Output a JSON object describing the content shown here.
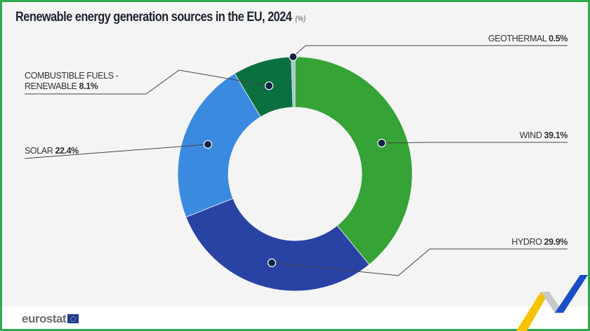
{
  "chart_data": {
    "type": "pie",
    "variant": "donut",
    "title": "Renewable energy generation sources in the EU, 2024",
    "unit": "(%)",
    "slices": [
      {
        "label": "WIND",
        "value": 39.1,
        "value_text": "39.1%",
        "color": "#35a336"
      },
      {
        "label": "HYDRO",
        "value": 29.9,
        "value_text": "29.9%",
        "color": "#2943a5"
      },
      {
        "label": "SOLAR",
        "value": 22.4,
        "value_text": "22.4%",
        "color": "#3a8be0"
      },
      {
        "label": "COMBUSTIBLE FUELS - RENEWABLE",
        "label_lines": [
          "COMBUSTIBLE FUELS -",
          "RENEWABLE"
        ],
        "value": 8.1,
        "value_text": "8.1%",
        "color": "#0b7040"
      },
      {
        "label": "GEOTHERMAL",
        "value": 0.5,
        "value_text": "0.5%",
        "color": "#9cc6cf"
      }
    ],
    "start": "top",
    "direction": "clockwise",
    "legend": "none"
  },
  "footer": {
    "logo": "eurostat",
    "frame_color": "#2eaa4f"
  }
}
